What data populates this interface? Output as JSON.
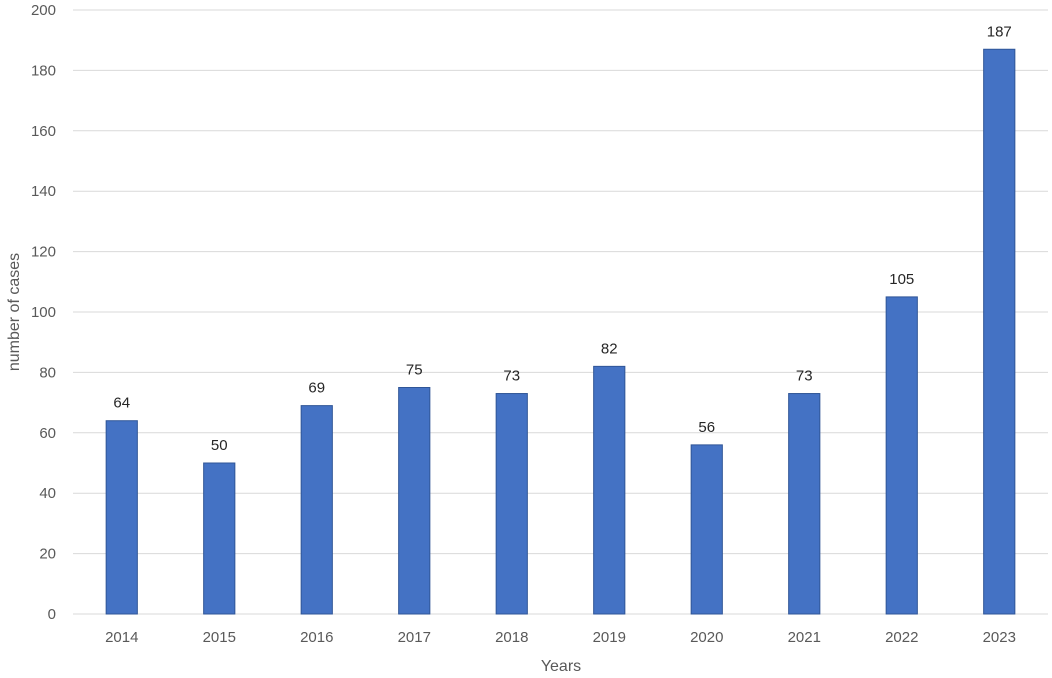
{
  "chart_data": {
    "type": "bar",
    "categories": [
      "2014",
      "2015",
      "2016",
      "2017",
      "2018",
      "2019",
      "2020",
      "2021",
      "2022",
      "2023"
    ],
    "values": [
      64,
      50,
      69,
      75,
      73,
      82,
      56,
      73,
      105,
      187
    ],
    "title": "",
    "xlabel": "Years",
    "ylabel": "number of cases",
    "ylim": [
      0,
      200
    ],
    "yticks": [
      0,
      20,
      40,
      60,
      80,
      100,
      120,
      140,
      160,
      180,
      200
    ],
    "grid": true,
    "legend": "none",
    "data_labels": true,
    "bar_color": "#4472c4"
  }
}
